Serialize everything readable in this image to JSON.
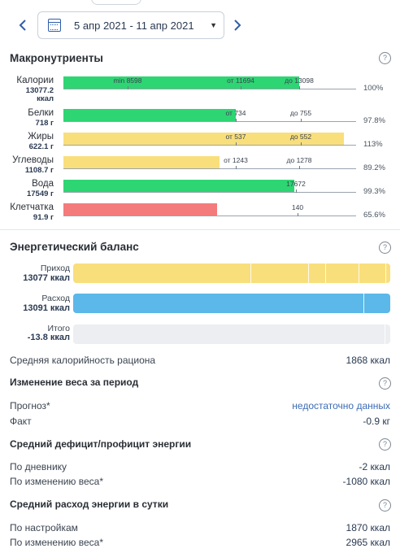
{
  "period": {
    "label": "5 апр 2021 - 11 апр 2021",
    "prev_icon": "chevron-left-icon",
    "next_icon": "chevron-right-icon",
    "calendar_icon": "calendar-icon"
  },
  "macros": {
    "title": "Макронутриенты",
    "help": "?",
    "rows": [
      {
        "name": "Калории",
        "value": "13077.2",
        "unit": "ккал",
        "color": "#2ed573",
        "fill": 0.805,
        "labels": [
          {
            "text": "min 8598",
            "pos": 0.22
          },
          {
            "text": "от 11694",
            "pos": 0.605
          },
          {
            "text": "до 13098",
            "pos": 0.805
          }
        ],
        "percent": "100%"
      },
      {
        "name": "Белки",
        "value": "718 г",
        "color": "#2ed573",
        "fill": 0.588,
        "labels": [
          {
            "text": "от 734",
            "pos": 0.59
          },
          {
            "text": "до 755",
            "pos": 0.81
          }
        ],
        "percent": "97.8%"
      },
      {
        "name": "Жиры",
        "value": "622.1 г",
        "color": "#f9df7b",
        "fill": 0.957,
        "labels": [
          {
            "text": "от 537",
            "pos": 0.59
          },
          {
            "text": "до 552",
            "pos": 0.81
          }
        ],
        "percent": "113%"
      },
      {
        "name": "Углеводы",
        "value": "1108.7 г",
        "color": "#f9df7b",
        "fill": 0.533,
        "labels": [
          {
            "text": "от 1243",
            "pos": 0.59
          },
          {
            "text": "до 1278",
            "pos": 0.805
          }
        ],
        "percent": "89.2%"
      },
      {
        "name": "Вода",
        "value": "17549 г",
        "color": "#2ed573",
        "fill": 0.79,
        "labels": [
          {
            "text": "17672",
            "pos": 0.795
          }
        ],
        "percent": "99.3%"
      },
      {
        "name": "Клетчатка",
        "value": "91.9 г",
        "color": "#f47b7b",
        "fill": 0.525,
        "labels": [
          {
            "text": "140",
            "pos": 0.8
          }
        ],
        "percent": "65.6%"
      }
    ]
  },
  "energy": {
    "title": "Энергетический баланс",
    "help": "?",
    "income": {
      "name": "Приход",
      "value": "13077 ккал",
      "color": "#f9df7b",
      "fill": 1.0
    },
    "expense": {
      "name": "Расход",
      "value": "13091 ккал",
      "color": "#5bb8e8",
      "fill": 1.0
    },
    "total": {
      "name": "Итого",
      "value": "-13.8 ккал",
      "color": "#eceef1",
      "fill": 1.0
    },
    "avg_calorie": {
      "label": "Средняя калорийность рациона",
      "value": "1868 ккал"
    }
  },
  "weight_change": {
    "title": "Изменение веса за период",
    "help": "?",
    "forecast": {
      "label": "Прогноз*",
      "value": "недостаточно данных"
    },
    "fact": {
      "label": "Факт",
      "value": "-0.9 кг"
    }
  },
  "deficit": {
    "title": "Средний дефицит/профицит энергии",
    "help": "?",
    "by_diary": {
      "label": "По дневнику",
      "value": "-2 ккал"
    },
    "by_weight": {
      "label": "По изменению веса*",
      "value": "-1080 ккал"
    }
  },
  "expenditure": {
    "title": "Средний расход энергии в сутки",
    "help": "?",
    "by_settings": {
      "label": "По настройкам",
      "value": "1870 ккал"
    },
    "by_weight": {
      "label": "По изменению веса*",
      "value": "2965 ккал"
    }
  }
}
